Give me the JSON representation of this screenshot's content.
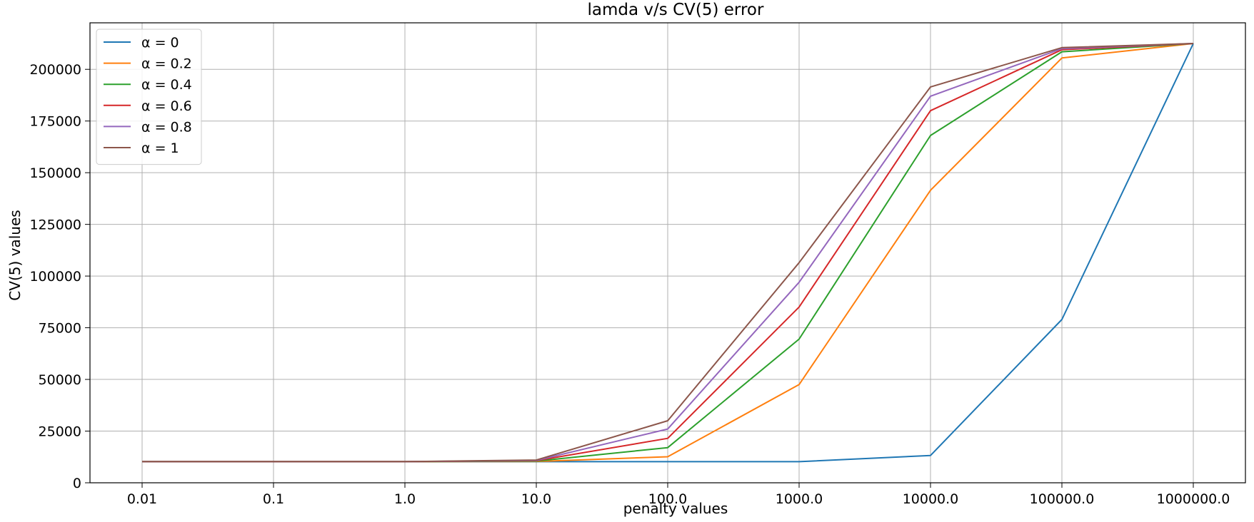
{
  "chart_data": {
    "type": "line",
    "title": "lamda v/s CV(5) error",
    "xlabel": "penalty values",
    "ylabel": "CV(5) values",
    "x_scale": "log",
    "x": [
      0.01,
      0.1,
      1.0,
      10.0,
      100.0,
      1000.0,
      10000.0,
      100000.0,
      1000000.0
    ],
    "x_tick_labels": [
      "0.01",
      "0.1",
      "1.0",
      "10.0",
      "100.0",
      "1000.0",
      "10000.0",
      "100000.0",
      "1000000.0"
    ],
    "yticks": [
      0,
      25000,
      50000,
      75000,
      100000,
      125000,
      150000,
      175000,
      200000
    ],
    "ylim": [
      0,
      222500
    ],
    "grid": true,
    "legend_position": "top-left",
    "series": [
      {
        "name": "α = 0",
        "color": "#1f77b4",
        "values": [
          10200,
          10200,
          10200,
          10200,
          10200,
          10200,
          13200,
          79000,
          212500
        ]
      },
      {
        "name": "α = 0.2",
        "color": "#ff7f0e",
        "values": [
          10200,
          10200,
          10200,
          10300,
          12600,
          47500,
          141500,
          205500,
          212500
        ]
      },
      {
        "name": "α = 0.4",
        "color": "#2ca02c",
        "values": [
          10200,
          10200,
          10200,
          10500,
          17000,
          69500,
          168000,
          208500,
          212500
        ]
      },
      {
        "name": "α = 0.6",
        "color": "#d62728",
        "values": [
          10200,
          10200,
          10200,
          10700,
          21500,
          85000,
          180000,
          209500,
          212500
        ]
      },
      {
        "name": "α = 0.8",
        "color": "#9467bd",
        "values": [
          10200,
          10200,
          10200,
          10800,
          26000,
          97000,
          187000,
          210000,
          212500
        ]
      },
      {
        "name": "α = 1",
        "color": "#8c564b",
        "values": [
          10200,
          10200,
          10200,
          11000,
          30000,
          106500,
          191500,
          210500,
          212500
        ]
      }
    ]
  }
}
